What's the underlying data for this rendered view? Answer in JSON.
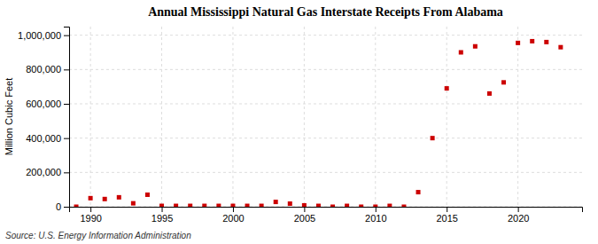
{
  "chart_data": {
    "type": "scatter",
    "title": "Annual Mississippi Natural Gas Interstate Receipts From Alabama",
    "ylabel": "Million Cubic Feet",
    "source": "Source: U.S. Energy Information Administration",
    "x": [
      1989,
      1990,
      1991,
      1992,
      1993,
      1994,
      1995,
      1996,
      1997,
      1998,
      1999,
      2000,
      2001,
      2002,
      2003,
      2004,
      2005,
      2006,
      2007,
      2008,
      2009,
      2010,
      2011,
      2012,
      2013,
      2014,
      2015,
      2016,
      2017,
      2018,
      2019,
      2020,
      2021,
      2022,
      2023
    ],
    "values": [
      0,
      50000,
      45000,
      55000,
      20000,
      70000,
      5000,
      5000,
      5000,
      5000,
      5000,
      5000,
      5000,
      5000,
      28000,
      18000,
      8000,
      5000,
      0,
      5000,
      0,
      0,
      5000,
      0,
      85000,
      400000,
      690000,
      900000,
      935000,
      660000,
      725000,
      955000,
      965000,
      960000,
      930000
    ],
    "color": "#cc0000",
    "marker": "square",
    "xlim": [
      1988.5,
      2024.5
    ],
    "xticks": [
      1990,
      1995,
      2000,
      2005,
      2010,
      2015,
      2020
    ],
    "ylim": [
      0,
      1050000
    ],
    "yticks": [
      0,
      {
        "value": 200000,
        "label": "200,000"
      },
      {
        "value": 400000,
        "label": "400,000"
      },
      {
        "value": 600000,
        "label": "600,000"
      },
      {
        "value": 800000,
        "label": "800,000"
      },
      {
        "value": 1000000,
        "label": "1,000,000"
      }
    ],
    "grid": true
  }
}
